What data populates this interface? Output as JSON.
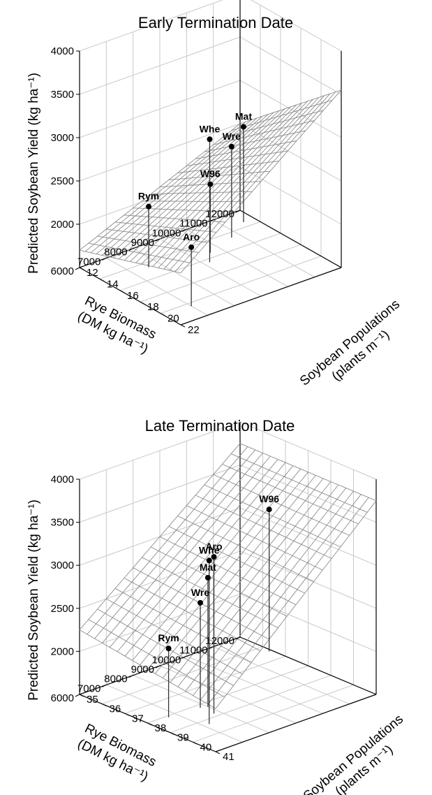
{
  "chart_data": [
    {
      "type": "surface3d",
      "title": "Early Termination Date",
      "zlabel": "Predicted Soybean Yield (kg ha⁻¹)",
      "xlabel": [
        "Rye Biomass",
        "(DM kg ha⁻¹)"
      ],
      "ylabel": [
        "Soybean Populations",
        "(plants m⁻¹)"
      ],
      "xlim": [
        6000,
        12000
      ],
      "ylim": [
        12,
        22
      ],
      "zlim": [
        1500,
        4000
      ],
      "x_ticks": [
        12000,
        11000,
        10000,
        9000,
        8000,
        7000,
        6000
      ],
      "y_ticks": [
        12,
        14,
        16,
        18,
        20,
        22
      ],
      "z_ticks": [
        2000,
        2500,
        3000,
        3500,
        4000
      ],
      "surface": {
        "z_at_x6000_y12": 1700,
        "z_at_x12000_y12": 2500,
        "z_at_x6000_y22": 2100,
        "z_at_x12000_y22": 3550
      },
      "points": [
        {
          "label": "Mat",
          "x": 11600,
          "y": 13.4,
          "z": 2600
        },
        {
          "label": "Wre",
          "x": 10700,
          "y": 14.6,
          "z": 2550
        },
        {
          "label": "Whe",
          "x": 9200,
          "y": 16.4,
          "z": 2920
        },
        {
          "label": "W96",
          "x": 9600,
          "y": 15.4,
          "z": 2290
        },
        {
          "label": "Rym",
          "x": 7600,
          "y": 14.6,
          "z": 2200
        },
        {
          "label": "Aro",
          "x": 7000,
          "y": 20.4,
          "z": 2180
        }
      ]
    },
    {
      "type": "surface3d",
      "title": "Late Termination Date",
      "zlabel": "Predicted Soybean Yield (kg ha⁻¹)",
      "xlabel": [
        "Rye Biomass",
        "(DM kg ha⁻¹)"
      ],
      "ylabel": [
        "Soybean Populations",
        "(plants m⁻¹)"
      ],
      "xlim": [
        6000,
        12000
      ],
      "ylim": [
        35,
        41
      ],
      "zlim": [
        1500,
        4000
      ],
      "x_ticks": [
        12000,
        11000,
        10000,
        9000,
        8000,
        7000,
        6000
      ],
      "y_ticks": [
        35,
        36,
        37,
        38,
        39,
        40,
        41
      ],
      "z_ticks": [
        2000,
        2500,
        3000,
        3500,
        4000
      ],
      "surface": {
        "z_at_x12000_y35": 3750,
        "z_at_x12000_y41": 3750,
        "z_at_x6000_y35": 2250,
        "z_at_x6000_y41": 2000
      },
      "points": [
        {
          "label": "W96",
          "x": 11900,
          "y": 36.4,
          "z": 3150
        },
        {
          "label": "Aro",
          "x": 7800,
          "y": 38.8,
          "z": 3320
        },
        {
          "label": "Whe",
          "x": 7200,
          "y": 39.3,
          "z": 3400
        },
        {
          "label": "Mat",
          "x": 8000,
          "y": 38.3,
          "z": 3000
        },
        {
          "label": "Wre",
          "x": 7800,
          "y": 38.2,
          "z": 2720
        },
        {
          "label": "Rym",
          "x": 6700,
          "y": 38.1,
          "z": 2300
        }
      ]
    }
  ]
}
